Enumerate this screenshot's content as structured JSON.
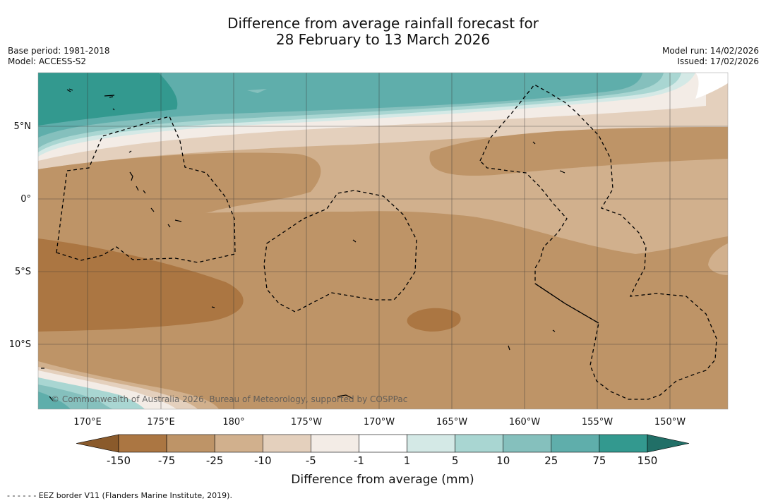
{
  "title": {
    "line1": "Difference from average rainfall forecast for",
    "line2": "28 February to 13 March 2026"
  },
  "meta": {
    "base_period": "Base period: 1981-2018",
    "model": "Model: ACCESS-S2",
    "model_run": "Model run: 14/02/2026",
    "issued": "Issued: 17/02/2026"
  },
  "map": {
    "copyright": "© Commonwealth of Australia 2026, Bureau of Meteorology, supported by COSPPac",
    "lon_labels": [
      "170°E",
      "175°E",
      "180°",
      "175°W",
      "170°W",
      "165°W",
      "160°W",
      "155°W",
      "150°W"
    ],
    "lat_labels": [
      "5°N",
      "0°",
      "5°S",
      "10°S"
    ]
  },
  "colorbar": {
    "ticks": [
      "-150",
      "-75",
      "-25",
      "-10",
      "-5",
      "-1",
      "1",
      "5",
      "10",
      "25",
      "75",
      "150"
    ],
    "colors": [
      "#8a5a2b",
      "#ab7642",
      "#be9467",
      "#d1b08d",
      "#e4d0bd",
      "#f3ece6",
      "#ffffff",
      "#d4e9e6",
      "#a9d6d2",
      "#85c0bd",
      "#5faeab",
      "#33998f",
      "#216f67"
    ],
    "label": "Difference from average (mm)"
  },
  "legend": {
    "eez_text": "- -  - -  - - EEZ border V11 (Flanders Marine Institute, 2019)."
  }
}
